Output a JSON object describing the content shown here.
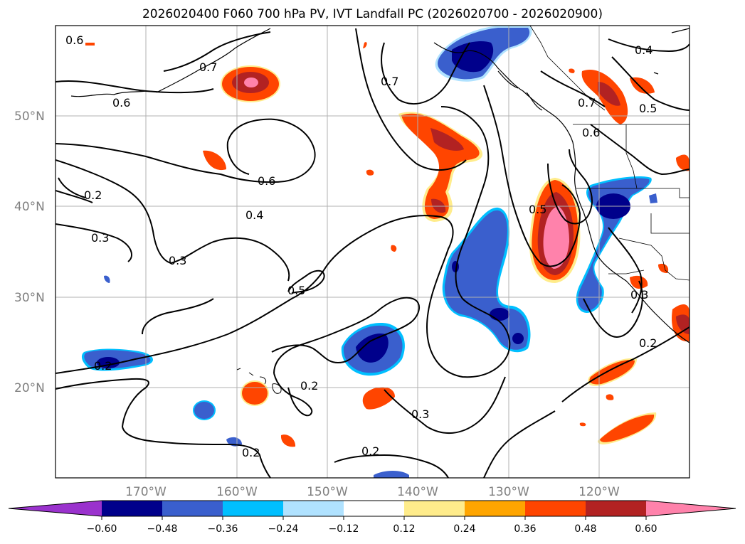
{
  "title": "2026020400 F060 700 hPa PV, IVT Landfall PC (2026020700 - 2026020900)",
  "map": {
    "lat_labels": [
      "50°N",
      "40°N",
      "30°N",
      "20°N"
    ],
    "lon_labels": [
      "170°W",
      "160°W",
      "150°W",
      "140°W",
      "130°W",
      "120°W"
    ],
    "contour_labels": [
      "0.6",
      "0.7",
      "0.6",
      "0.7",
      "0.4",
      "0.5",
      "0.7",
      "0.6",
      "0.6",
      "0.2",
      "0.3",
      "0.4",
      "0.3",
      "0.5",
      "0.5",
      "0.3",
      "0.2",
      "0.2",
      "0.3",
      "0.2",
      "0.2",
      "0.2"
    ]
  },
  "colorbar": {
    "colors": [
      "#9a32cd",
      "#00008b",
      "#3a5fcd",
      "#00bfff",
      "#b0e2ff",
      "#ffffff",
      "#ffec8b",
      "#ffa500",
      "#ff4500",
      "#b22222",
      "#ff82ab"
    ],
    "ticks": [
      "−0.60",
      "−0.48",
      "−0.36",
      "−0.24",
      "−0.12",
      "0.12",
      "0.24",
      "0.36",
      "0.48",
      "0.60"
    ]
  }
}
